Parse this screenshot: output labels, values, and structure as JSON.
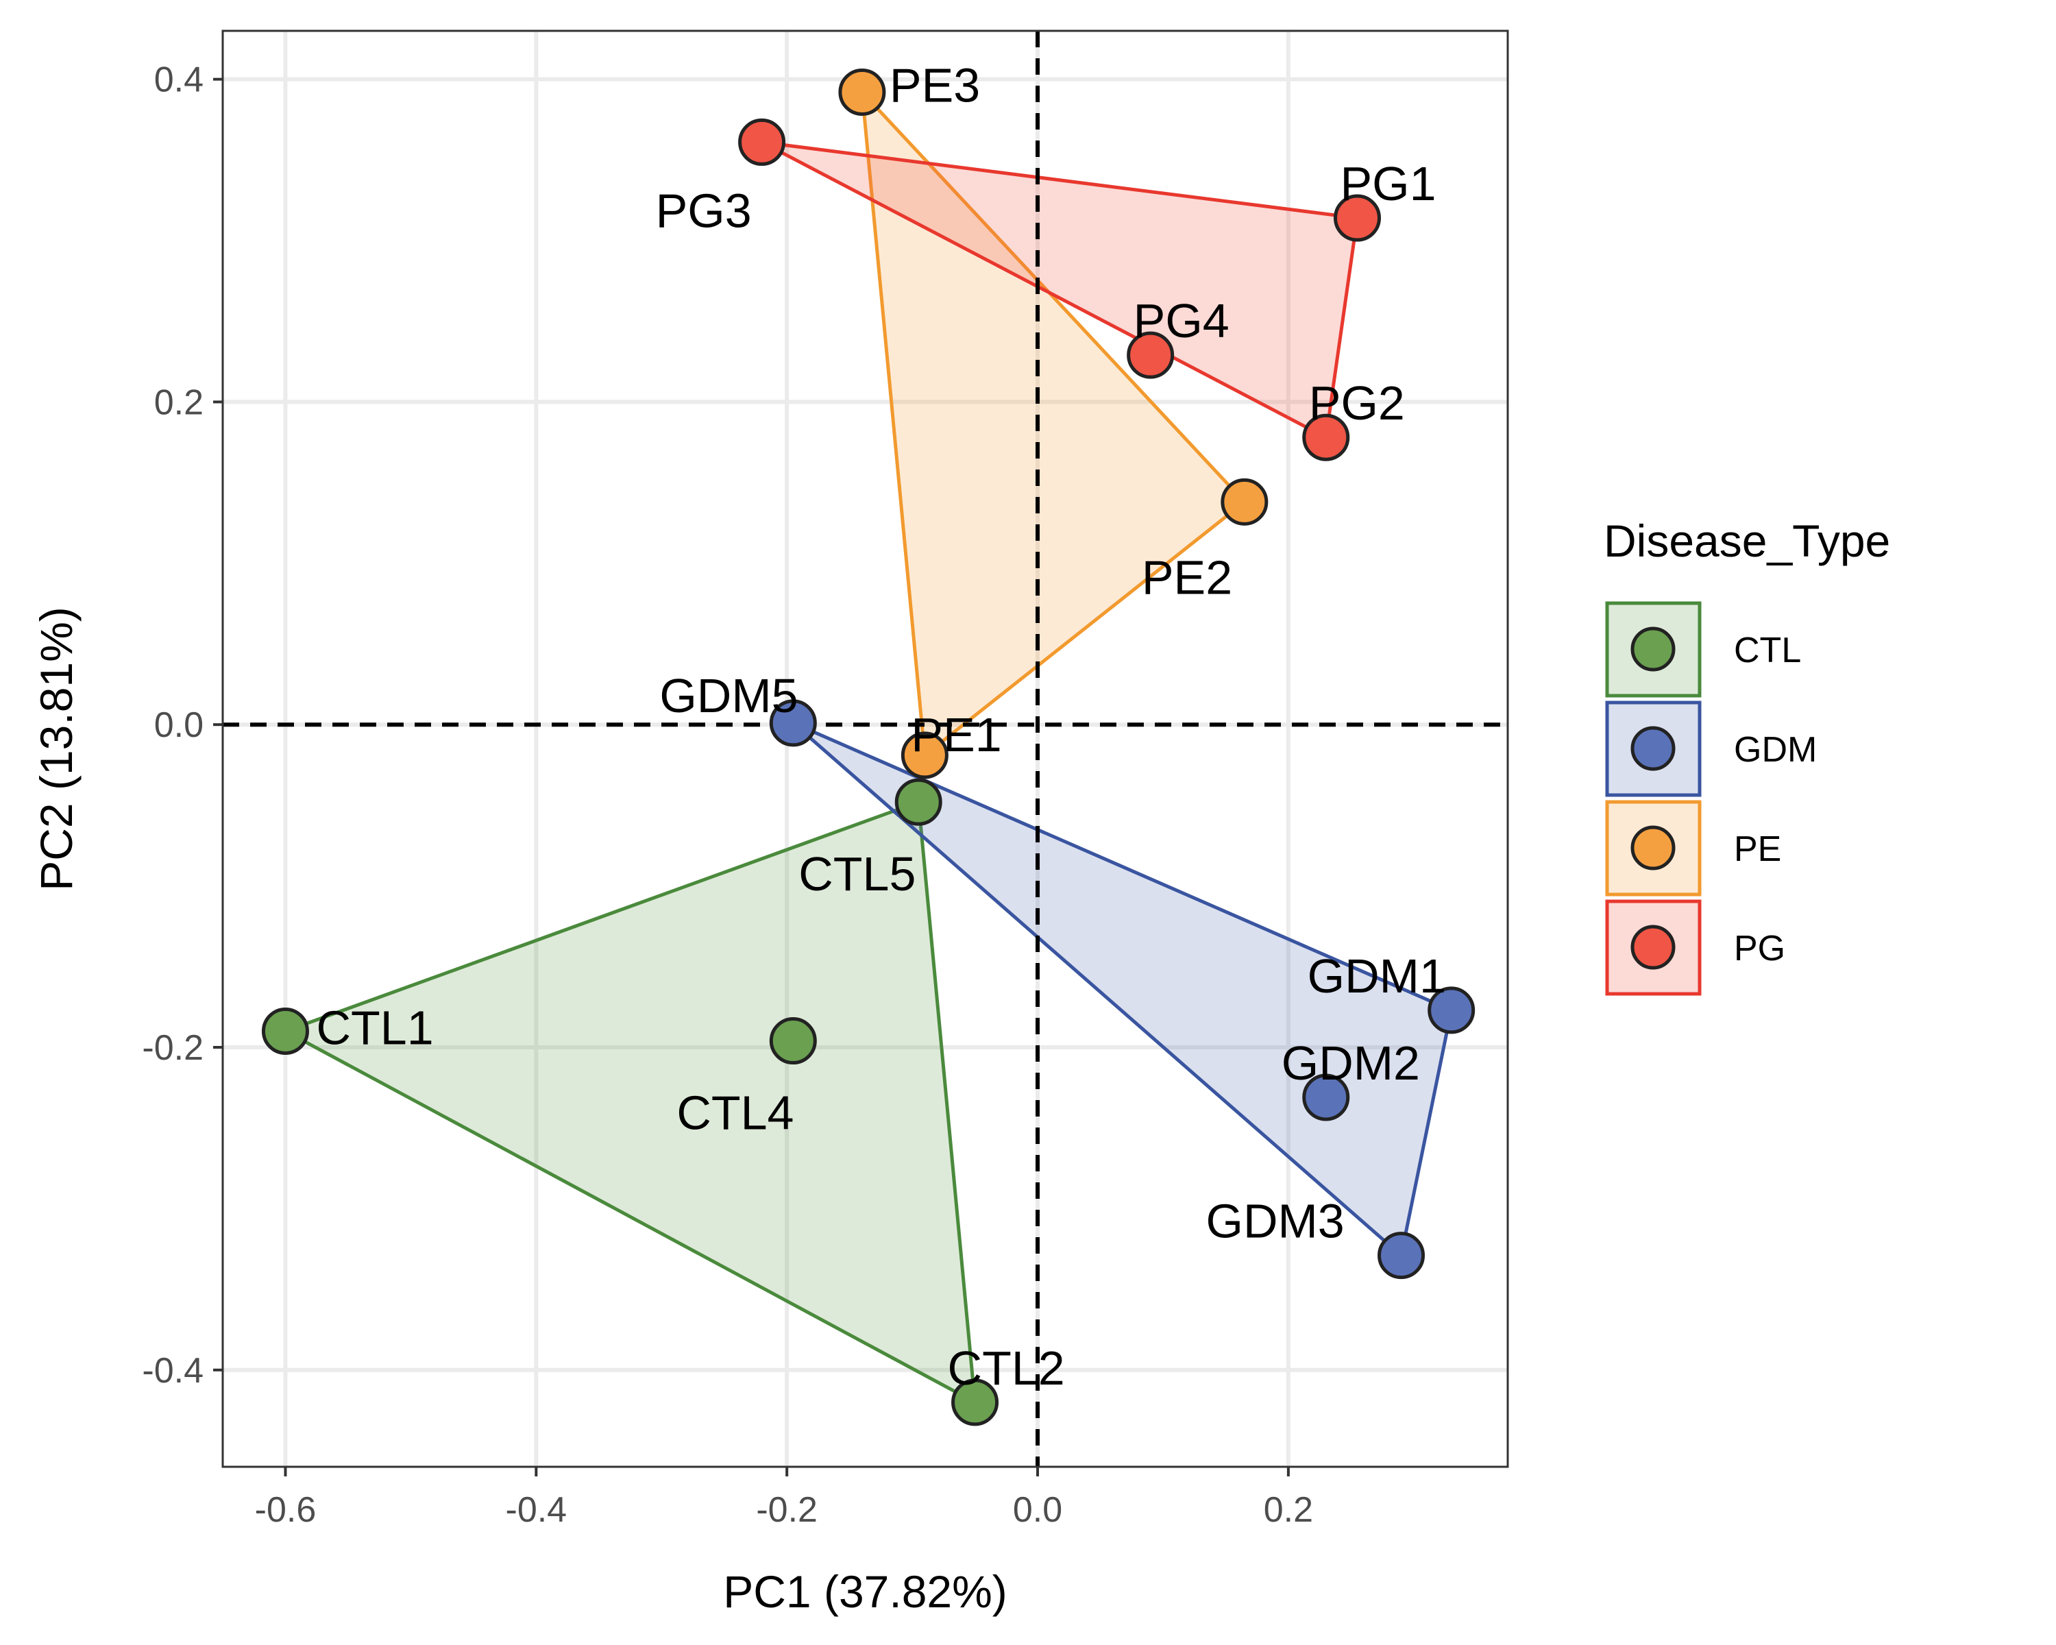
{
  "chart_data": {
    "type": "scatter",
    "xlabel": "PC1 (37.82%)",
    "ylabel": "PC2 (13.81%)",
    "xlim": [
      -0.65,
      0.375
    ],
    "ylim": [
      -0.46,
      0.43
    ],
    "x_ticks": [
      -0.6,
      -0.4,
      -0.2,
      0.0,
      0.2
    ],
    "x_tick_labels": [
      "-0.6",
      "-0.4",
      "-0.2",
      "0.0",
      "0.2"
    ],
    "y_ticks": [
      -0.4,
      -0.2,
      0.0,
      0.2,
      0.4
    ],
    "y_tick_labels": [
      "-0.4",
      "-0.2",
      "0.0",
      "0.2",
      "0.4"
    ],
    "reference_lines": {
      "x": 0,
      "y": 0,
      "style": "dashed"
    },
    "grid": true,
    "legend": {
      "title": "Disease_Type",
      "position": "right"
    },
    "series": [
      {
        "name": "CTL",
        "color": "#4a8a3c",
        "fill": "#6aa050",
        "points": [
          {
            "label": "CTL1",
            "x": -0.6,
            "y": -0.19
          },
          {
            "label": "CTL2",
            "x": -0.05,
            "y": -0.42
          },
          {
            "label": "CTL4",
            "x": -0.195,
            "y": -0.196
          },
          {
            "label": "CTL5",
            "x": -0.095,
            "y": -0.048
          }
        ],
        "hull": [
          "CTL1",
          "CTL5",
          "CTL2"
        ]
      },
      {
        "name": "GDM",
        "color": "#3a55a0",
        "fill": "#5a72b8",
        "points": [
          {
            "label": "GDM1",
            "x": 0.33,
            "y": -0.177
          },
          {
            "label": "GDM2",
            "x": 0.23,
            "y": -0.231
          },
          {
            "label": "GDM3",
            "x": 0.29,
            "y": -0.329
          },
          {
            "label": "GDM5",
            "x": -0.195,
            "y": 0.001
          }
        ],
        "hull": [
          "GDM5",
          "GDM1",
          "GDM3"
        ]
      },
      {
        "name": "PE",
        "color": "#f29a2e",
        "fill": "#f5a040",
        "points": [
          {
            "label": "PE1",
            "x": -0.09,
            "y": -0.019
          },
          {
            "label": "PE2",
            "x": 0.165,
            "y": 0.138
          },
          {
            "label": "PE3",
            "x": -0.14,
            "y": 0.392
          }
        ],
        "hull": [
          "PE1",
          "PE2",
          "PE3"
        ]
      },
      {
        "name": "PG",
        "color": "#e8382e",
        "fill": "#f05545",
        "points": [
          {
            "label": "PG1",
            "x": 0.255,
            "y": 0.314
          },
          {
            "label": "PG2",
            "x": 0.23,
            "y": 0.178
          },
          {
            "label": "PG3",
            "x": -0.22,
            "y": 0.361
          },
          {
            "label": "PG4",
            "x": 0.09,
            "y": 0.229
          }
        ],
        "hull": [
          "PG3",
          "PG1",
          "PG2"
        ]
      }
    ]
  }
}
